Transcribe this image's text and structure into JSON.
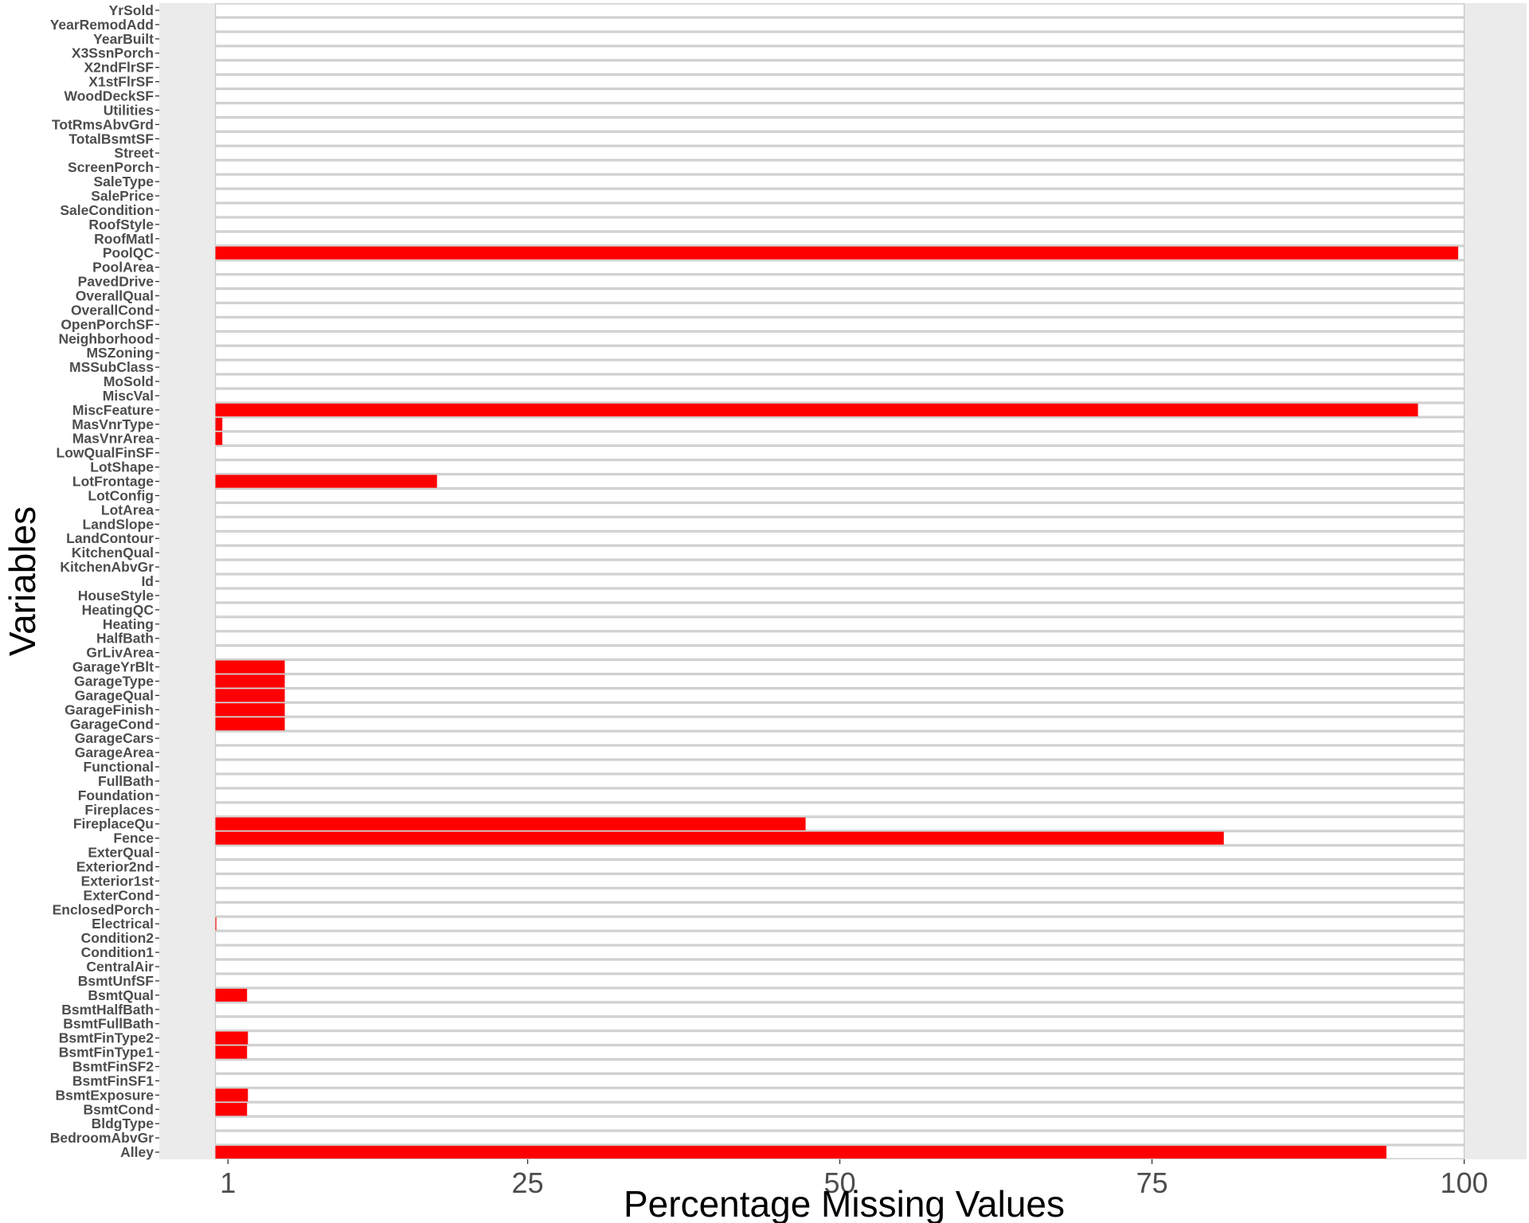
{
  "chart_data": {
    "type": "bar",
    "orientation": "horizontal",
    "xlabel": "Percentage Missing Values",
    "ylabel": "Variables",
    "xlim": [
      -4.5,
      105
    ],
    "xticks": [
      1,
      25,
      50,
      75,
      100
    ],
    "background_max": 100,
    "grid": true,
    "legend": "none",
    "colors": {
      "panel": "#ebebeb",
      "bar": "#ff0000",
      "bar_background": "#ffffff",
      "bar_background_stroke": "#c9c9c9"
    },
    "categories": [
      "Alley",
      "BedroomAbvGr",
      "BldgType",
      "BsmtCond",
      "BsmtExposure",
      "BsmtFinSF1",
      "BsmtFinSF2",
      "BsmtFinType1",
      "BsmtFinType2",
      "BsmtFullBath",
      "BsmtHalfBath",
      "BsmtQual",
      "BsmtUnfSF",
      "CentralAir",
      "Condition1",
      "Condition2",
      "Electrical",
      "EnclosedPorch",
      "ExterCond",
      "Exterior1st",
      "Exterior2nd",
      "ExterQual",
      "Fence",
      "FireplaceQu",
      "Fireplaces",
      "Foundation",
      "FullBath",
      "Functional",
      "GarageArea",
      "GarageCars",
      "GarageCond",
      "GarageFinish",
      "GarageQual",
      "GarageType",
      "GarageYrBlt",
      "GrLivArea",
      "HalfBath",
      "Heating",
      "HeatingQC",
      "HouseStyle",
      "Id",
      "KitchenAbvGr",
      "KitchenQual",
      "LandContour",
      "LandSlope",
      "LotArea",
      "LotConfig",
      "LotFrontage",
      "LotShape",
      "LowQualFinSF",
      "MasVnrArea",
      "MasVnrType",
      "MiscFeature",
      "MiscVal",
      "MoSold",
      "MSSubClass",
      "MSZoning",
      "Neighborhood",
      "OpenPorchSF",
      "OverallCond",
      "OverallQual",
      "PavedDrive",
      "PoolArea",
      "PoolQC",
      "RoofMatl",
      "RoofStyle",
      "SaleCondition",
      "SalePrice",
      "SaleType",
      "ScreenPorch",
      "Street",
      "TotalBsmtSF",
      "TotRmsAbvGrd",
      "Utilities",
      "WoodDeckSF",
      "X1stFlrSF",
      "X2ndFlrSF",
      "X3SsnPorch",
      "YearBuilt",
      "YearRemodAdd",
      "YrSold"
    ],
    "values": [
      93.77,
      0,
      0,
      2.53,
      2.6,
      0,
      0,
      2.53,
      2.6,
      0,
      0,
      2.53,
      0,
      0,
      0,
      0,
      0.07,
      0,
      0,
      0,
      0,
      0,
      80.75,
      47.26,
      0,
      0,
      0,
      0,
      0,
      0,
      5.55,
      5.55,
      5.55,
      5.55,
      5.55,
      0,
      0,
      0,
      0,
      0,
      0,
      0,
      0,
      0,
      0,
      0,
      0,
      17.74,
      0,
      0,
      0.55,
      0.55,
      96.3,
      0,
      0,
      0,
      0,
      0,
      0,
      0,
      0,
      0,
      0,
      99.52,
      0,
      0,
      0,
      0,
      0,
      0,
      0,
      0,
      0,
      0,
      0,
      0,
      0,
      0,
      0,
      0,
      0
    ]
  }
}
